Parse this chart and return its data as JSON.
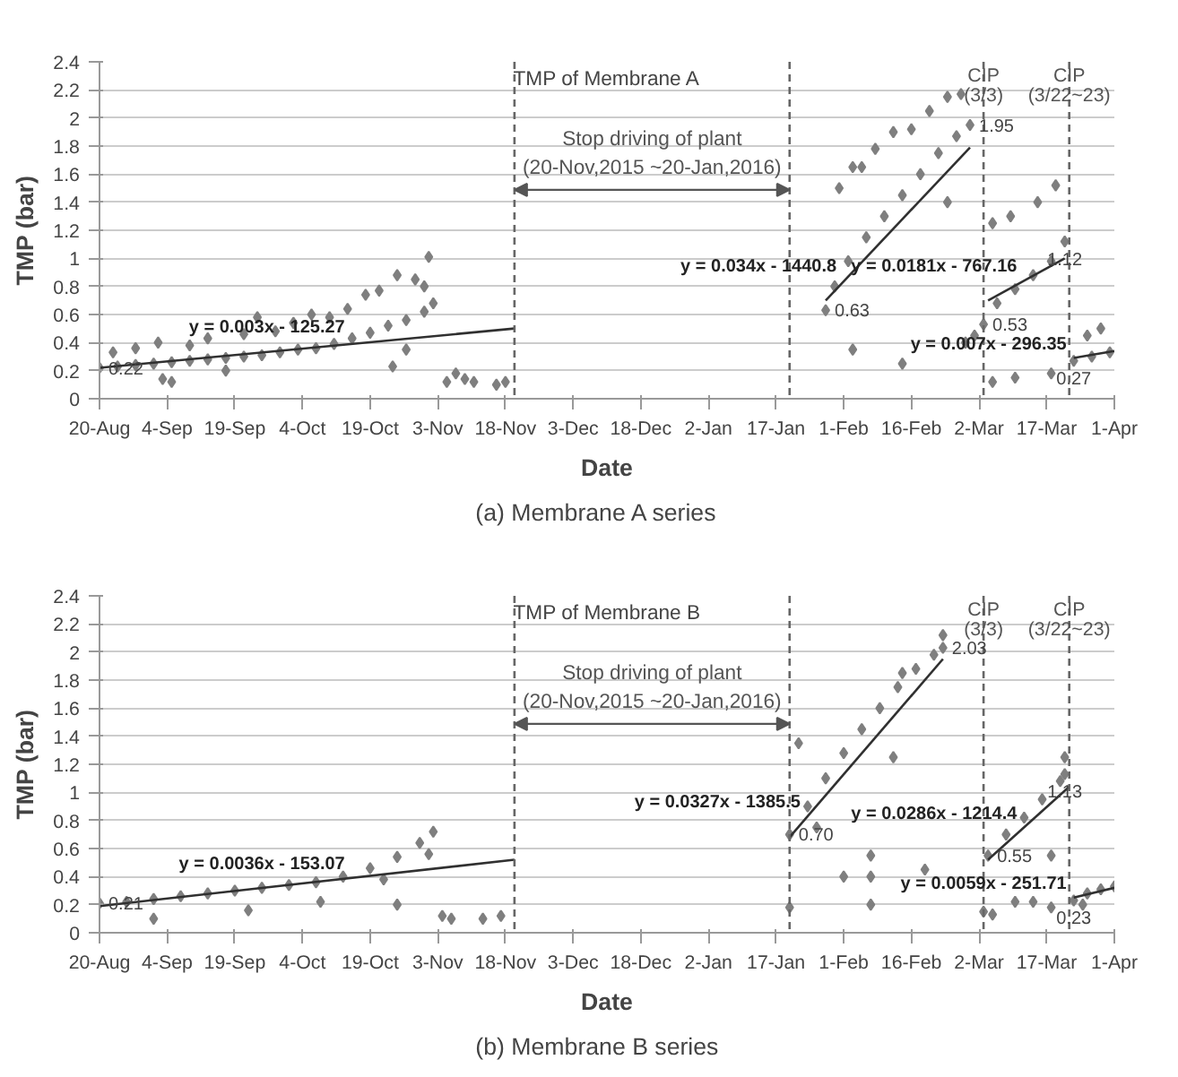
{
  "chart_data": [
    {
      "type": "scatter",
      "title": "TMP of Membrane A",
      "xlabel": "Date",
      "ylabel": "TMP (bar)",
      "xlim": [
        "2015-08-20",
        "2016-04-01"
      ],
      "ylim": [
        0,
        2.4
      ],
      "xticks": [
        {
          "value": "2015-08-20",
          "label": "20-Aug"
        },
        {
          "value": "2015-09-04",
          "label": "4-Sep"
        },
        {
          "value": "2015-09-19",
          "label": "19-Sep"
        },
        {
          "value": "2015-10-04",
          "label": "4-Oct"
        },
        {
          "value": "2015-10-19",
          "label": "19-Oct"
        },
        {
          "value": "2015-11-03",
          "label": "3-Nov"
        },
        {
          "value": "2015-11-18",
          "label": "18-Nov"
        },
        {
          "value": "2015-12-03",
          "label": "3-Dec"
        },
        {
          "value": "2015-12-18",
          "label": "18-Dec"
        },
        {
          "value": "2016-01-02",
          "label": "2-Jan"
        },
        {
          "value": "2016-01-17",
          "label": "17-Jan"
        },
        {
          "value": "2016-02-01",
          "label": "1-Feb"
        },
        {
          "value": "2016-02-16",
          "label": "16-Feb"
        },
        {
          "value": "2016-03-02",
          "label": "2-Mar"
        },
        {
          "value": "2016-03-17",
          "label": "17-Mar"
        },
        {
          "value": "2016-04-01",
          "label": "1-Apr"
        }
      ],
      "yticks": [
        0,
        0.2,
        0.4,
        0.6,
        0.8,
        1,
        1.2,
        1.4,
        1.6,
        1.8,
        2,
        2.2,
        2.4
      ],
      "grid": "y",
      "marker": "diamond",
      "series": [
        {
          "color": "#7f7f7f",
          "x": [
            "2015-08-20",
            "2015-08-24",
            "2015-08-28",
            "2015-09-01",
            "2015-09-05",
            "2015-09-09",
            "2015-09-13",
            "2015-09-17",
            "2015-09-21",
            "2015-09-25",
            "2015-09-29",
            "2015-10-03",
            "2015-10-07",
            "2015-10-11",
            "2015-10-15",
            "2015-10-19",
            "2015-10-23",
            "2015-10-27",
            "2015-10-31",
            "2015-11-02",
            "2015-08-23",
            "2015-08-28",
            "2015-09-02",
            "2015-09-03",
            "2015-09-05",
            "2015-09-09",
            "2015-09-13",
            "2015-09-17",
            "2015-09-21",
            "2015-09-24",
            "2015-09-28",
            "2015-10-02",
            "2015-10-06",
            "2015-10-10",
            "2015-10-14",
            "2015-10-18",
            "2015-10-21",
            "2015-10-25",
            "2015-10-29",
            "2015-10-31",
            "2015-11-01",
            "2015-10-27",
            "2015-10-24",
            "2015-11-05",
            "2015-11-07",
            "2015-11-09",
            "2015-11-11",
            "2015-11-16",
            "2015-11-18",
            "2016-01-28",
            "2016-01-30",
            "2016-02-02",
            "2016-02-06",
            "2016-02-10",
            "2016-02-14",
            "2016-02-18",
            "2016-02-22",
            "2016-02-26",
            "2016-02-29",
            "2016-01-31",
            "2016-02-03",
            "2016-02-08",
            "2016-02-12",
            "2016-02-16",
            "2016-02-20",
            "2016-02-24",
            "2016-02-27",
            "2016-02-03",
            "2016-02-14",
            "2016-02-24",
            "2016-02-05",
            "2016-03-03",
            "2016-03-06",
            "2016-03-10",
            "2016-03-14",
            "2016-03-18",
            "2016-03-21",
            "2016-03-05",
            "2016-03-09",
            "2016-03-15",
            "2016-03-19",
            "2016-03-05",
            "2016-03-10",
            "2016-03-18",
            "2016-03-01",
            "2016-02-28",
            "2016-03-23",
            "2016-03-27",
            "2016-03-31",
            "2016-03-29",
            "2016-03-26"
          ],
          "values": [
            0.22,
            0.23,
            0.24,
            0.25,
            0.26,
            0.27,
            0.28,
            0.29,
            0.3,
            0.31,
            0.33,
            0.35,
            0.36,
            0.39,
            0.43,
            0.47,
            0.52,
            0.56,
            0.62,
            0.68,
            0.33,
            0.36,
            0.4,
            0.14,
            0.12,
            0.38,
            0.43,
            0.2,
            0.46,
            0.58,
            0.48,
            0.54,
            0.6,
            0.58,
            0.64,
            0.74,
            0.77,
            0.88,
            0.85,
            0.8,
            1.01,
            0.35,
            0.23,
            0.12,
            0.18,
            0.14,
            0.12,
            0.1,
            0.12,
            0.63,
            0.8,
            0.98,
            1.15,
            1.3,
            1.45,
            1.6,
            1.75,
            1.87,
            1.95,
            1.5,
            1.65,
            1.78,
            1.9,
            1.92,
            2.05,
            2.15,
            2.17,
            0.35,
            0.25,
            1.4,
            1.65,
            0.53,
            0.68,
            0.78,
            0.88,
            0.98,
            1.12,
            1.25,
            1.3,
            1.4,
            1.52,
            0.12,
            0.15,
            0.18,
            0.45,
            0.4,
            0.27,
            0.3,
            0.33,
            0.5,
            0.45
          ]
        },
        {
          "type": "line",
          "marker": "none",
          "color": "#303030",
          "x": [
            "2015-08-20",
            "2015-11-20"
          ],
          "values": [
            0.22,
            0.5
          ]
        },
        {
          "type": "line",
          "marker": "none",
          "color": "#303030",
          "x": [
            "2016-01-28",
            "2016-02-29"
          ],
          "values": [
            0.7,
            1.79
          ]
        },
        {
          "type": "line",
          "marker": "none",
          "color": "#303030",
          "x": [
            "2016-03-04",
            "2016-03-21"
          ],
          "values": [
            0.7,
            1.0
          ]
        },
        {
          "type": "line",
          "marker": "none",
          "color": "#303030",
          "x": [
            "2016-03-23",
            "2016-04-01"
          ],
          "values": [
            0.29,
            0.34
          ]
        }
      ],
      "ref_lines": [
        {
          "axis": "x",
          "value": "2015-11-20",
          "label": null,
          "color": "#666666",
          "line_style": "dashed"
        },
        {
          "axis": "x",
          "value": "2016-01-20",
          "label": null,
          "color": "#666666",
          "line_style": "dashed"
        },
        {
          "axis": "x",
          "value": "2016-03-03",
          "label": "CIP\n(3/3)",
          "color": "#666666",
          "line_style": "dashed"
        },
        {
          "axis": "x",
          "value": "2016-03-22",
          "label": "CIP\n(3/22~23)",
          "color": "#666666",
          "line_style": "dashed"
        }
      ],
      "annotations": [
        "Stop driving of plant",
        "(20-Nov,2015 ~20-Jan,2016)",
        {
          "text": "y = 0.003x - 125.27",
          "x": "2015-10-15",
          "y": 0.41
        },
        {
          "text": "y = 0.034x - 1440.8",
          "x": "2016-02-01",
          "y": 0.84
        },
        {
          "text": "y = 0.0181x - 767.16",
          "x": "2016-03-12",
          "y": 0.84
        },
        {
          "text": "y = 0.007x - 296.35",
          "x": "2016-03-23",
          "y": 0.29
        },
        {
          "text": "0.22",
          "x": "2015-08-20",
          "y": 0.22
        },
        {
          "text": "0.63",
          "x": "2016-01-28",
          "y": 0.63
        },
        {
          "text": "1.95",
          "x": "2016-02-29",
          "y": 1.95
        },
        {
          "text": "0.53",
          "x": "2016-03-03",
          "y": 0.53
        },
        {
          "text": "1.12",
          "x": "2016-03-21",
          "y": 1.12
        },
        {
          "text": "0.27",
          "x": "2016-03-23",
          "y": 0.27
        },
        "(a)  Membrane  A  series"
      ]
    },
    {
      "type": "scatter",
      "title": "TMP of Membrane B",
      "xlabel": "Date",
      "ylabel": "TMP (bar)",
      "xlim": [
        "2015-08-20",
        "2016-04-01"
      ],
      "ylim": [
        0,
        2.4
      ],
      "xticks": [
        {
          "value": "2015-08-20",
          "label": "20-Aug"
        },
        {
          "value": "2015-09-04",
          "label": "4-Sep"
        },
        {
          "value": "2015-09-19",
          "label": "19-Sep"
        },
        {
          "value": "2015-10-04",
          "label": "4-Oct"
        },
        {
          "value": "2015-10-19",
          "label": "19-Oct"
        },
        {
          "value": "2015-11-03",
          "label": "3-Nov"
        },
        {
          "value": "2015-11-18",
          "label": "18-Nov"
        },
        {
          "value": "2015-12-03",
          "label": "3-Dec"
        },
        {
          "value": "2015-12-18",
          "label": "18-Dec"
        },
        {
          "value": "2016-01-02",
          "label": "2-Jan"
        },
        {
          "value": "2016-01-17",
          "label": "17-Jan"
        },
        {
          "value": "2016-02-01",
          "label": "1-Feb"
        },
        {
          "value": "2016-02-16",
          "label": "16-Feb"
        },
        {
          "value": "2016-03-02",
          "label": "2-Mar"
        },
        {
          "value": "2016-03-17",
          "label": "17-Mar"
        },
        {
          "value": "2016-04-01",
          "label": "1-Apr"
        }
      ],
      "yticks": [
        0,
        0.2,
        0.4,
        0.6,
        0.8,
        1,
        1.2,
        1.4,
        1.6,
        1.8,
        2,
        2.2,
        2.4
      ],
      "grid": "y",
      "marker": "diamond",
      "series": [
        {
          "color": "#7f7f7f",
          "x": [
            "2015-08-20",
            "2015-08-26",
            "2015-09-01",
            "2015-09-07",
            "2015-09-13",
            "2015-09-19",
            "2015-09-25",
            "2015-10-01",
            "2015-10-07",
            "2015-10-13",
            "2015-10-19",
            "2015-10-25",
            "2015-10-30",
            "2015-11-02",
            "2015-09-01",
            "2015-09-22",
            "2015-10-08",
            "2015-10-25",
            "2015-10-22",
            "2015-11-01",
            "2015-11-04",
            "2015-11-06",
            "2015-11-13",
            "2015-11-17",
            "2016-01-20",
            "2016-01-24",
            "2016-01-28",
            "2016-02-01",
            "2016-02-05",
            "2016-02-09",
            "2016-02-13",
            "2016-02-17",
            "2016-02-21",
            "2016-02-23",
            "2016-01-22",
            "2016-01-26",
            "2016-01-20",
            "2016-02-01",
            "2016-02-07",
            "2016-02-07",
            "2016-02-07",
            "2016-02-12",
            "2016-02-23",
            "2016-02-14",
            "2016-02-19",
            "2016-03-04",
            "2016-03-08",
            "2016-03-12",
            "2016-03-16",
            "2016-03-20",
            "2016-03-21",
            "2016-03-03",
            "2016-03-05",
            "2016-03-10",
            "2016-03-14",
            "2016-03-18",
            "2016-03-21",
            "2016-03-18",
            "2016-03-23",
            "2016-03-26",
            "2016-03-29",
            "2016-04-01",
            "2016-03-25"
          ],
          "values": [
            0.21,
            0.22,
            0.24,
            0.26,
            0.28,
            0.3,
            0.32,
            0.34,
            0.36,
            0.4,
            0.46,
            0.54,
            0.64,
            0.72,
            0.1,
            0.16,
            0.22,
            0.2,
            0.38,
            0.56,
            0.12,
            0.1,
            0.1,
            0.12,
            0.7,
            0.9,
            1.1,
            1.28,
            1.45,
            1.6,
            1.75,
            1.88,
            1.98,
            2.03,
            1.35,
            0.75,
            0.18,
            0.4,
            0.55,
            0.4,
            0.2,
            1.25,
            2.12,
            1.85,
            0.45,
            0.55,
            0.7,
            0.82,
            0.95,
            1.08,
            1.13,
            0.15,
            0.13,
            0.22,
            0.22,
            0.18,
            1.25,
            0.55,
            0.23,
            0.28,
            0.31,
            0.33,
            0.2
          ]
        },
        {
          "type": "line",
          "marker": "none",
          "color": "#303030",
          "x": [
            "2015-08-20",
            "2015-11-20"
          ],
          "values": [
            0.19,
            0.52
          ]
        },
        {
          "type": "line",
          "marker": "none",
          "color": "#303030",
          "x": [
            "2016-01-20",
            "2016-02-23"
          ],
          "values": [
            0.68,
            1.95
          ]
        },
        {
          "type": "line",
          "marker": "none",
          "color": "#303030",
          "x": [
            "2016-03-04",
            "2016-03-22"
          ],
          "values": [
            0.52,
            1.04
          ]
        },
        {
          "type": "line",
          "marker": "none",
          "color": "#303030",
          "x": [
            "2016-03-23",
            "2016-04-01"
          ],
          "values": [
            0.25,
            0.32
          ]
        }
      ],
      "ref_lines": [
        {
          "axis": "x",
          "value": "2015-11-20",
          "label": null,
          "color": "#666666",
          "line_style": "dashed"
        },
        {
          "axis": "x",
          "value": "2016-01-20",
          "label": null,
          "color": "#666666",
          "line_style": "dashed"
        },
        {
          "axis": "x",
          "value": "2016-03-03",
          "label": "CIP\n(3/3)",
          "color": "#666666",
          "line_style": "dashed"
        },
        {
          "axis": "x",
          "value": "2016-03-22",
          "label": "CIP\n(3/22~23)",
          "color": "#666666",
          "line_style": "dashed"
        }
      ],
      "annotations": [
        "Stop driving of plant",
        "(20-Nov,2015 ~20-Jan,2016)",
        {
          "text": "y = 0.0036x - 153.07",
          "x": "2015-10-15",
          "y": 0.39
        },
        {
          "text": "y = 0.0327x - 1385.5",
          "x": "2016-01-24",
          "y": 0.83
        },
        {
          "text": "y = 0.0286x - 1214.4",
          "x": "2016-03-12",
          "y": 0.75
        },
        {
          "text": "y = 0.0059x - 251.71",
          "x": "2016-03-23",
          "y": 0.25
        },
        {
          "text": "0.21",
          "x": "2015-08-20",
          "y": 0.21
        },
        {
          "text": "0.70",
          "x": "2016-01-20",
          "y": 0.7
        },
        {
          "text": "2.03",
          "x": "2016-02-23",
          "y": 2.03
        },
        {
          "text": "0.55",
          "x": "2016-03-04",
          "y": 0.55
        },
        {
          "text": "1.13",
          "x": "2016-03-21",
          "y": 1.13
        },
        {
          "text": "0.23",
          "x": "2016-03-23",
          "y": 0.23
        },
        "(b)  Membrane  B  series"
      ]
    }
  ]
}
